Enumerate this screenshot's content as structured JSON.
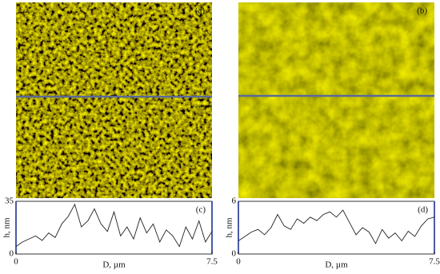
{
  "images": [
    {
      "label": "(a)"
    },
    {
      "label": "(b)"
    }
  ],
  "chart_data": [
    {
      "type": "line",
      "label": "(c)",
      "xlabel": "D, µm",
      "ylabel": "h, nm",
      "x": [
        0,
        0.25,
        0.5,
        0.75,
        1,
        1.25,
        1.5,
        1.75,
        2,
        2.25,
        2.5,
        2.75,
        3,
        3.25,
        3.5,
        3.75,
        4,
        4.25,
        4.5,
        4.75,
        5,
        5.25,
        5.5,
        5.75,
        6,
        6.25,
        6.5,
        6.75,
        7,
        7.25,
        7.5
      ],
      "series": [
        {
          "color": "#222222",
          "values": [
            5,
            8,
            10,
            12,
            9,
            14,
            11,
            20,
            25,
            33,
            18,
            22,
            30,
            20,
            15,
            28,
            12,
            18,
            10,
            24,
            14,
            20,
            8,
            16,
            12,
            5,
            18,
            10,
            22,
            8,
            15
          ]
        }
      ],
      "xlim": [
        0,
        7.5
      ],
      "xticks": [
        0,
        7.5
      ],
      "ylim": [
        0,
        35
      ],
      "yticks": [
        0,
        35
      ]
    },
    {
      "type": "line",
      "label": "(d)",
      "xlabel": "D, µm",
      "ylabel": "h, nm",
      "x": [
        0,
        0.25,
        0.5,
        0.75,
        1,
        1.25,
        1.5,
        1.75,
        2,
        2.25,
        2.5,
        2.75,
        3,
        3.25,
        3.5,
        3.75,
        4,
        4.25,
        4.5,
        4.75,
        5,
        5.25,
        5.5,
        5.75,
        6,
        6.25,
        6.5,
        6.75,
        7,
        7.25,
        7.5
      ],
      "series": [
        {
          "color": "#222222",
          "values": [
            1.5,
            2.0,
            2.5,
            2.8,
            2.2,
            3.0,
            4.5,
            3.2,
            2.8,
            4.0,
            3.5,
            4.2,
            3.8,
            4.5,
            4.8,
            4.2,
            5.0,
            3.6,
            2.2,
            3.0,
            2.5,
            1.2,
            2.8,
            1.8,
            2.4,
            1.5,
            2.6,
            2.0,
            3.2,
            4.0,
            4.2
          ]
        }
      ],
      "xlim": [
        0,
        7.5
      ],
      "xticks": [
        0,
        7.5
      ],
      "ylim": [
        0,
        6
      ],
      "yticks": [
        0,
        6
      ]
    }
  ]
}
